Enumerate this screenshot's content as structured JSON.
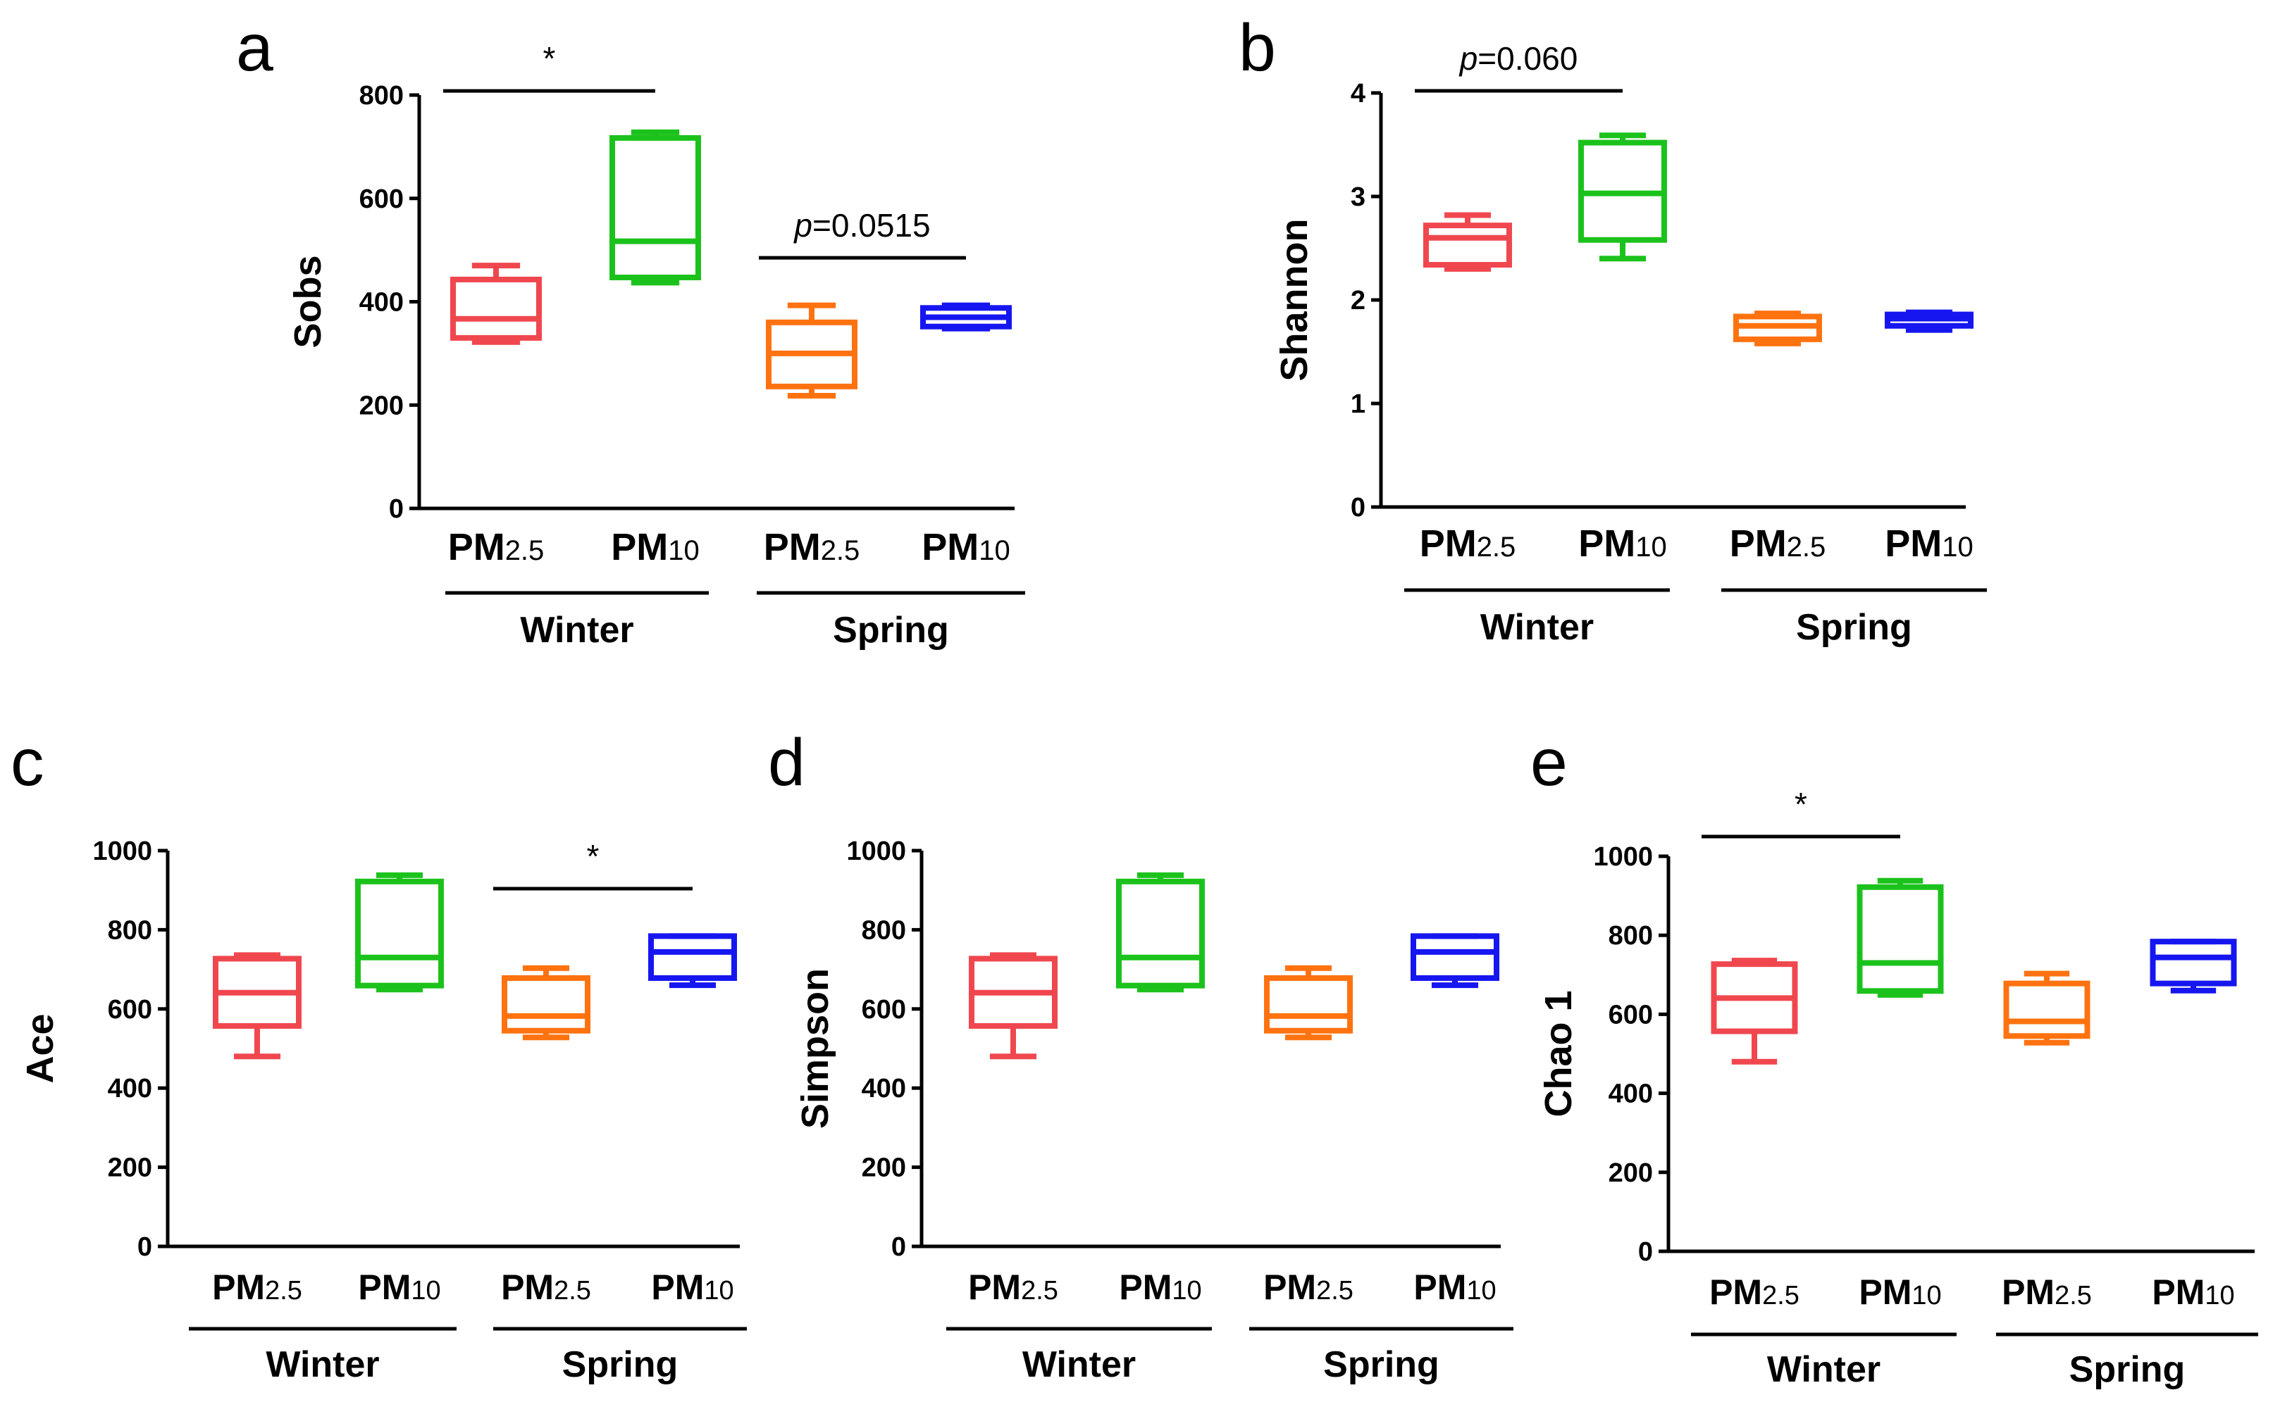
{
  "chart_data": [
    {
      "panel": "a",
      "type": "boxplot",
      "ylabel": "Sobs",
      "ylim": [
        0,
        800
      ],
      "yticks": [
        0,
        200,
        400,
        600,
        800
      ],
      "groups": [
        "Winter",
        "Spring"
      ],
      "categories": [
        {
          "label": "PM",
          "sub": "2.5",
          "group": "Winter",
          "color": "#f0474f",
          "min": 322,
          "q1": 330,
          "median": 367,
          "q3": 443,
          "max": 470
        },
        {
          "label": "PM",
          "sub": "10",
          "group": "Winter",
          "color": "#1cc21c",
          "min": 437,
          "q1": 447,
          "median": 517,
          "q3": 717,
          "max": 728
        },
        {
          "label": "PM",
          "sub": "2.5",
          "group": "Spring",
          "color": "#ff7210",
          "min": 218,
          "q1": 236,
          "median": 300,
          "q3": 360,
          "max": 393
        },
        {
          "label": "PM",
          "sub": "10",
          "group": "Spring",
          "color": "#1616f0",
          "min": 348,
          "q1": 352,
          "median": 370,
          "q3": 388,
          "max": 393
        }
      ],
      "annotations": [
        {
          "from": 0,
          "to": 1,
          "y": 808,
          "text": "*"
        },
        {
          "from": 2,
          "to": 3,
          "y": 485,
          "text": "p=0.0515",
          "italic_prefix": "p",
          "rest": "=0.0515"
        }
      ]
    },
    {
      "panel": "b",
      "type": "boxplot",
      "ylabel": "Shannon",
      "ylim": [
        0,
        4
      ],
      "yticks": [
        0,
        1,
        2,
        3,
        4
      ],
      "groups": [
        "Winter",
        "Spring"
      ],
      "categories": [
        {
          "label": "PM",
          "sub": "2.5",
          "group": "Winter",
          "color": "#f0474f",
          "min": 2.3,
          "q1": 2.34,
          "median": 2.6,
          "q3": 2.72,
          "max": 2.82
        },
        {
          "label": "PM",
          "sub": "10",
          "group": "Winter",
          "color": "#1cc21c",
          "min": 2.4,
          "q1": 2.58,
          "median": 3.03,
          "q3": 3.52,
          "max": 3.59
        },
        {
          "label": "PM",
          "sub": "2.5",
          "group": "Spring",
          "color": "#ff7210",
          "min": 1.58,
          "q1": 1.62,
          "median": 1.75,
          "q3": 1.84,
          "max": 1.87
        },
        {
          "label": "PM",
          "sub": "10",
          "group": "Spring",
          "color": "#1616f0",
          "min": 1.71,
          "q1": 1.75,
          "median": 1.82,
          "q3": 1.86,
          "max": 1.88
        }
      ],
      "annotations": [
        {
          "from": 0,
          "to": 1,
          "y": 4.02,
          "text": "p=0.060",
          "italic_prefix": "p",
          "rest": "=0.060"
        }
      ]
    },
    {
      "panel": "c",
      "type": "boxplot",
      "ylabel": "Ace",
      "ylim": [
        0,
        1000
      ],
      "yticks": [
        0,
        200,
        400,
        600,
        800,
        1000
      ],
      "groups": [
        "Winter",
        "Spring"
      ],
      "categories": [
        {
          "label": "PM",
          "sub": "2.5",
          "group": "Winter",
          "color": "#f0474f",
          "min": 480,
          "q1": 557,
          "median": 641,
          "q3": 727,
          "max": 736
        },
        {
          "label": "PM",
          "sub": "10",
          "group": "Winter",
          "color": "#1cc21c",
          "min": 649,
          "q1": 659,
          "median": 730,
          "q3": 922,
          "max": 938
        },
        {
          "label": "PM",
          "sub": "2.5",
          "group": "Spring",
          "color": "#ff7210",
          "min": 528,
          "q1": 545,
          "median": 582,
          "q3": 678,
          "max": 703
        },
        {
          "label": "PM",
          "sub": "10",
          "group": "Spring",
          "color": "#1616f0",
          "min": 660,
          "q1": 678,
          "median": 744,
          "q3": 784,
          "max": 784
        }
      ],
      "annotations": [
        {
          "from": 2,
          "to": 3,
          "y": 904,
          "text": "*"
        }
      ]
    },
    {
      "panel": "d",
      "type": "boxplot",
      "ylabel": "Simpson",
      "ylim": [
        0,
        1000
      ],
      "yticks": [
        0,
        200,
        400,
        600,
        800,
        1000
      ],
      "groups": [
        "Winter",
        "Spring"
      ],
      "categories": [
        {
          "label": "PM",
          "sub": "2.5",
          "group": "Winter",
          "color": "#f0474f",
          "min": 480,
          "q1": 557,
          "median": 641,
          "q3": 727,
          "max": 736
        },
        {
          "label": "PM",
          "sub": "10",
          "group": "Winter",
          "color": "#1cc21c",
          "min": 649,
          "q1": 659,
          "median": 730,
          "q3": 922,
          "max": 938
        },
        {
          "label": "PM",
          "sub": "2.5",
          "group": "Spring",
          "color": "#ff7210",
          "min": 528,
          "q1": 545,
          "median": 582,
          "q3": 678,
          "max": 703
        },
        {
          "label": "PM",
          "sub": "10",
          "group": "Spring",
          "color": "#1616f0",
          "min": 660,
          "q1": 678,
          "median": 744,
          "q3": 784,
          "max": 784
        }
      ],
      "annotations": []
    },
    {
      "panel": "e",
      "type": "boxplot",
      "ylabel": "Chao 1",
      "ylim": [
        0,
        1000
      ],
      "yticks": [
        0,
        200,
        400,
        600,
        800,
        1000
      ],
      "groups": [
        "Winter",
        "Spring"
      ],
      "categories": [
        {
          "label": "PM",
          "sub": "2.5",
          "group": "Winter",
          "color": "#f0474f",
          "min": 480,
          "q1": 557,
          "median": 641,
          "q3": 727,
          "max": 736
        },
        {
          "label": "PM",
          "sub": "10",
          "group": "Winter",
          "color": "#1cc21c",
          "min": 649,
          "q1": 659,
          "median": 730,
          "q3": 922,
          "max": 938
        },
        {
          "label": "PM",
          "sub": "2.5",
          "group": "Spring",
          "color": "#ff7210",
          "min": 528,
          "q1": 545,
          "median": 582,
          "q3": 678,
          "max": 703
        },
        {
          "label": "PM",
          "sub": "10",
          "group": "Spring",
          "color": "#1616f0",
          "min": 660,
          "q1": 678,
          "median": 744,
          "q3": 784,
          "max": 784
        }
      ],
      "annotations": [
        {
          "from": 0,
          "to": 1,
          "y": 1050,
          "text": "*"
        }
      ]
    }
  ]
}
